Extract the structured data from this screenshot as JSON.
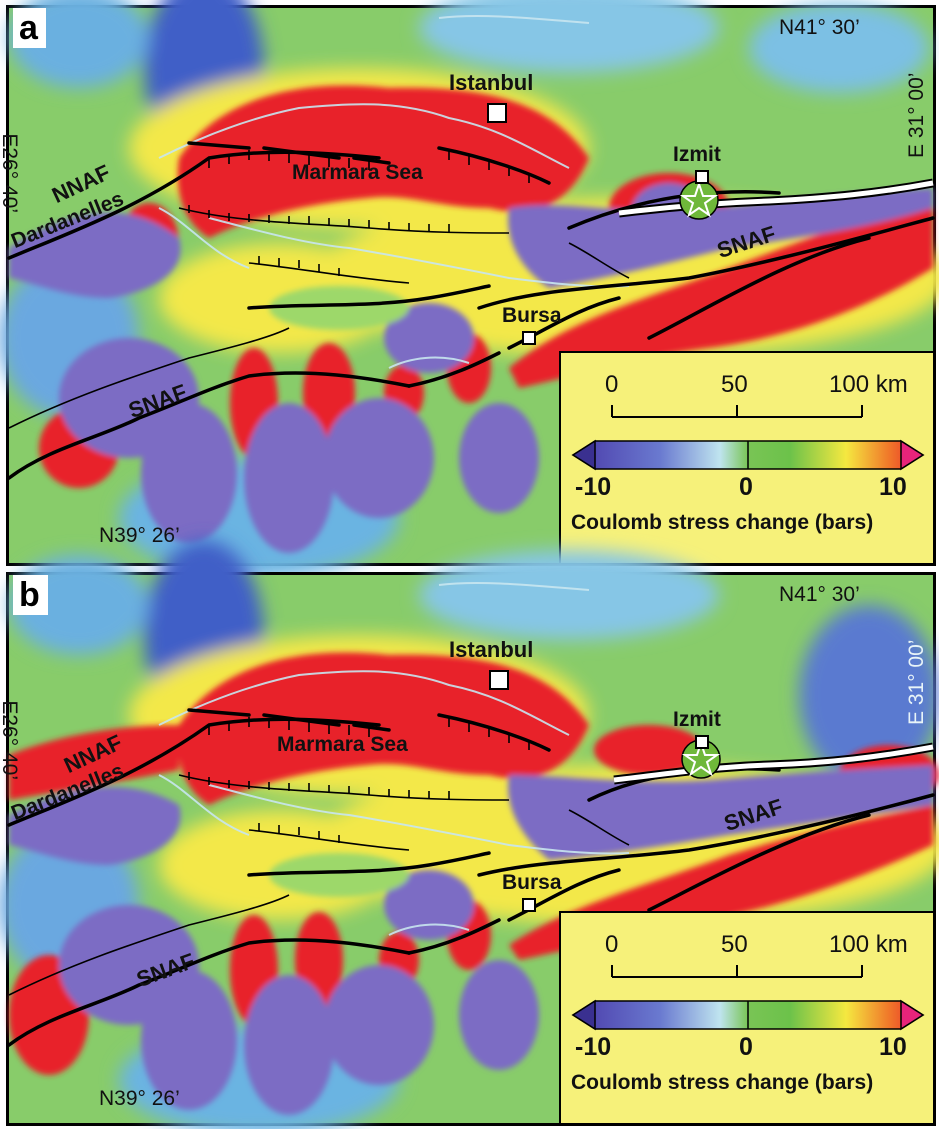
{
  "panels": [
    {
      "label": "a",
      "places": {
        "istanbul": "Istanbul",
        "izmit": "Izmit",
        "bursa": "Bursa",
        "marmara": "Marmara Sea",
        "dardanelles": "Dardanelles",
        "nnaf": "NNAF",
        "snaf_east": "SNAF",
        "snaf_west": "SNAF"
      },
      "coords": {
        "top_right": "N41° 30’",
        "bottom_left": "N39° 26’",
        "left_vertical": "E26° 40’",
        "right_vertical": "E 31° 00’"
      },
      "legend": {
        "scale_ticks": [
          "0",
          "50",
          "100 km"
        ],
        "colorbar_ticks": [
          "-10",
          "0",
          "10"
        ],
        "title": "Coulomb stress change (bars)"
      }
    },
    {
      "label": "b",
      "places": {
        "istanbul": "Istanbul",
        "izmit": "Izmit",
        "bursa": "Bursa",
        "marmara": "Marmara Sea",
        "dardanelles": "Dardanelles",
        "nnaf": "NNAF",
        "snaf_east": "SNAF",
        "snaf_west": "SNAF"
      },
      "coords": {
        "top_right": "N41° 30’",
        "bottom_left": "N39° 26’",
        "left_vertical": "E26° 40’",
        "right_vertical": "E 31° 00’"
      },
      "legend": {
        "scale_ticks": [
          "0",
          "50",
          "100 km"
        ],
        "colorbar_ticks": [
          "-10",
          "0",
          "10"
        ],
        "title": "Coulomb stress change (bars)"
      }
    }
  ],
  "colors": {
    "positive": "#e8242a",
    "negative": "#7b6cc4",
    "neutral": "#7ec85a",
    "legend_bg": "#f6f17a"
  }
}
